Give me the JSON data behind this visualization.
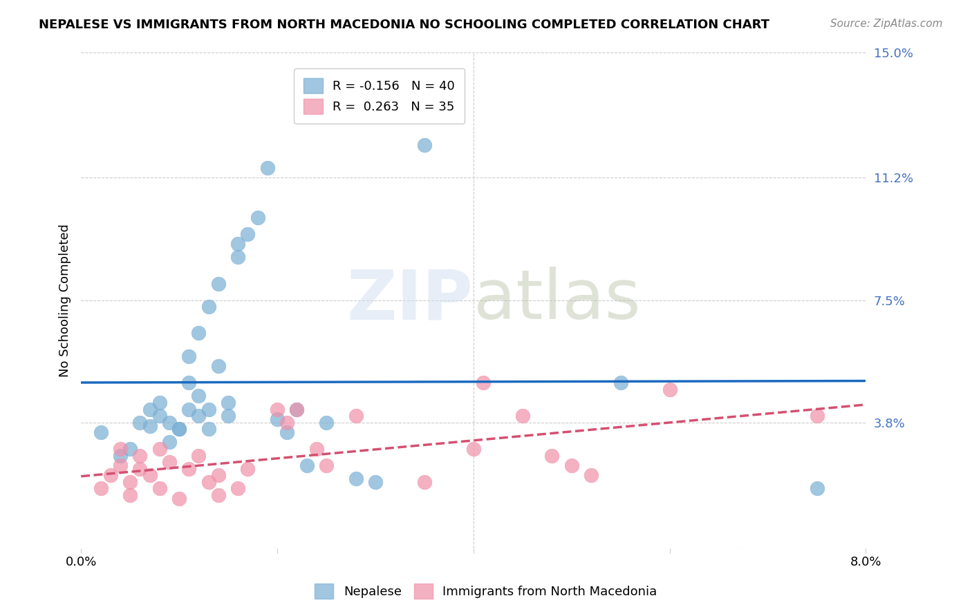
{
  "title": "NEPALESE VS IMMIGRANTS FROM NORTH MACEDONIA NO SCHOOLING COMPLETED CORRELATION CHART",
  "source": "Source: ZipAtlas.com",
  "ylabel": "No Schooling Completed",
  "xlabel": "",
  "xlim": [
    0.0,
    0.08
  ],
  "ylim": [
    0.0,
    0.15
  ],
  "xticks": [
    0.0,
    0.02,
    0.04,
    0.06,
    0.08
  ],
  "xticklabels": [
    "0.0%",
    "",
    "",
    "",
    "8.0%"
  ],
  "yticks": [
    0.0,
    0.038,
    0.075,
    0.112,
    0.15
  ],
  "yticklabels": [
    "",
    "3.8%",
    "7.5%",
    "11.2%",
    "15.0%"
  ],
  "legend_entries": [
    {
      "label": "R = -0.156   N = 40",
      "color": "#a8c4e0"
    },
    {
      "label": "R =  0.263   N = 35",
      "color": "#f4a0b0"
    }
  ],
  "nepalese_color": "#7aafd4",
  "macedonia_color": "#f090a8",
  "nepalese_line_color": "#1a6abf",
  "macedonia_line_color": "#d45070",
  "watermark": "ZIPatlas",
  "nepalese_x": [
    0.002,
    0.004,
    0.005,
    0.006,
    0.007,
    0.007,
    0.008,
    0.008,
    0.009,
    0.009,
    0.01,
    0.01,
    0.011,
    0.011,
    0.011,
    0.012,
    0.012,
    0.012,
    0.013,
    0.013,
    0.013,
    0.014,
    0.014,
    0.015,
    0.015,
    0.016,
    0.016,
    0.017,
    0.018,
    0.019,
    0.02,
    0.021,
    0.022,
    0.023,
    0.025,
    0.028,
    0.03,
    0.035,
    0.055,
    0.075
  ],
  "nepalese_y": [
    0.035,
    0.028,
    0.03,
    0.038,
    0.037,
    0.042,
    0.04,
    0.044,
    0.032,
    0.038,
    0.036,
    0.036,
    0.058,
    0.042,
    0.05,
    0.065,
    0.046,
    0.04,
    0.073,
    0.042,
    0.036,
    0.08,
    0.055,
    0.04,
    0.044,
    0.088,
    0.092,
    0.095,
    0.1,
    0.115,
    0.039,
    0.035,
    0.042,
    0.025,
    0.038,
    0.021,
    0.02,
    0.122,
    0.05,
    0.018
  ],
  "macedonia_x": [
    0.002,
    0.003,
    0.004,
    0.004,
    0.005,
    0.005,
    0.006,
    0.006,
    0.007,
    0.008,
    0.008,
    0.009,
    0.01,
    0.011,
    0.012,
    0.013,
    0.014,
    0.014,
    0.016,
    0.017,
    0.02,
    0.021,
    0.022,
    0.024,
    0.025,
    0.028,
    0.035,
    0.04,
    0.041,
    0.045,
    0.048,
    0.05,
    0.052,
    0.06,
    0.075
  ],
  "macedonia_y": [
    0.018,
    0.022,
    0.03,
    0.025,
    0.02,
    0.016,
    0.024,
    0.028,
    0.022,
    0.03,
    0.018,
    0.026,
    0.015,
    0.024,
    0.028,
    0.02,
    0.016,
    0.022,
    0.018,
    0.024,
    0.042,
    0.038,
    0.042,
    0.03,
    0.025,
    0.04,
    0.02,
    0.03,
    0.05,
    0.04,
    0.028,
    0.025,
    0.022,
    0.048,
    0.04
  ]
}
